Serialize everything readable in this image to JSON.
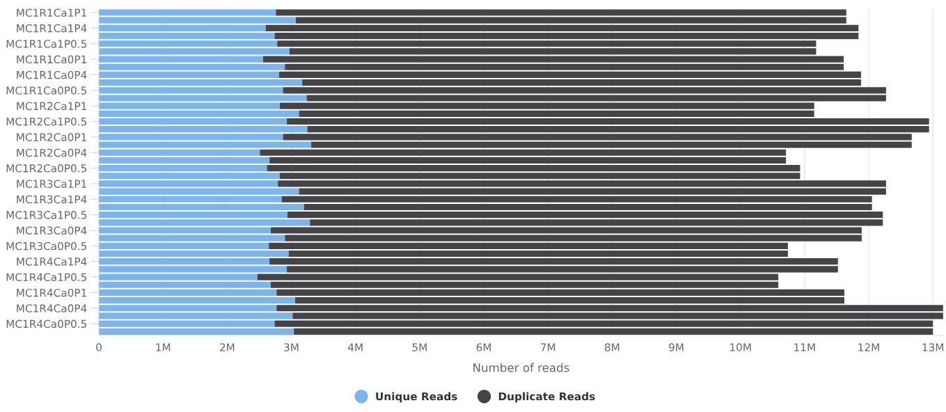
{
  "chart_data": {
    "type": "bar",
    "orientation": "horizontal",
    "stacked": true,
    "xlabel": "Number of reads",
    "categories": [
      "MC1R1Ca1P1",
      null,
      "MC1R1Ca1P4",
      null,
      "MC1R1Ca1P0.5",
      null,
      "MC1R1Ca0P1",
      null,
      "MC1R1Ca0P4",
      null,
      "MC1R1Ca0P0.5",
      null,
      "MC1R2Ca1P1",
      null,
      "MC1R2Ca1P0.5",
      null,
      "MC1R2Ca0P1",
      null,
      "MC1R2Ca0P4",
      null,
      "MC1R2Ca0P0.5",
      null,
      "MC1R3Ca1P1",
      null,
      "MC1R3Ca1P4",
      null,
      "MC1R3Ca1P0.5",
      null,
      "MC1R3Ca0P4",
      null,
      "MC1R3Ca0P0.5",
      null,
      "MC1R4Ca1P4",
      null,
      "MC1R4Ca1P0.5",
      null,
      "MC1R4Ca0P1",
      null,
      "MC1R4Ca0P4",
      null,
      "MC1R4Ca0P0.5",
      null
    ],
    "series": [
      {
        "name": "Unique Reads",
        "color": "#7cb5ec",
        "values": [
          2760000,
          3070000,
          2600000,
          2740000,
          2780000,
          2970000,
          2560000,
          2900000,
          2810000,
          3170000,
          2870000,
          3240000,
          2820000,
          3120000,
          2930000,
          3250000,
          2870000,
          3310000,
          2510000,
          2660000,
          2620000,
          2820000,
          2790000,
          3120000,
          2850000,
          3200000,
          2940000,
          3290000,
          2680000,
          2900000,
          2650000,
          2960000,
          2660000,
          2930000,
          2470000,
          2680000,
          2770000,
          3060000,
          2770000,
          3020000,
          2740000,
          3040000
        ]
      },
      {
        "name": "Duplicate Reads",
        "color": "#434348",
        "values": [
          8890000,
          8580000,
          9240000,
          9100000,
          8400000,
          8210000,
          9050000,
          8710000,
          9070000,
          8710000,
          9400000,
          9030000,
          8330000,
          8030000,
          10010000,
          9690000,
          9800000,
          9360000,
          8200000,
          8050000,
          8310000,
          8110000,
          9480000,
          9150000,
          9200000,
          8850000,
          9280000,
          8930000,
          9210000,
          8990000,
          8090000,
          7780000,
          8860000,
          8590000,
          8120000,
          7910000,
          8850000,
          8560000,
          10390000,
          10140000,
          10260000,
          9960000
        ]
      }
    ],
    "xlim": [
      0,
      13160000
    ],
    "xticks": [
      0,
      {
        "value": 1000000,
        "label": "1M"
      },
      {
        "value": 2000000,
        "label": "2M"
      },
      {
        "value": 3000000,
        "label": "3M"
      },
      {
        "value": 4000000,
        "label": "4M"
      },
      {
        "value": 5000000,
        "label": "5M"
      },
      {
        "value": 6000000,
        "label": "6M"
      },
      {
        "value": 7000000,
        "label": "7M"
      },
      {
        "value": 8000000,
        "label": "8M"
      },
      {
        "value": 9000000,
        "label": "9M"
      },
      {
        "value": 10000000,
        "label": "10M"
      },
      {
        "value": 11000000,
        "label": "11M"
      },
      {
        "value": 12000000,
        "label": "12M"
      },
      {
        "value": 13000000,
        "label": "13M"
      }
    ],
    "grid": "x",
    "legend": "bottom",
    "marker": "circle"
  }
}
